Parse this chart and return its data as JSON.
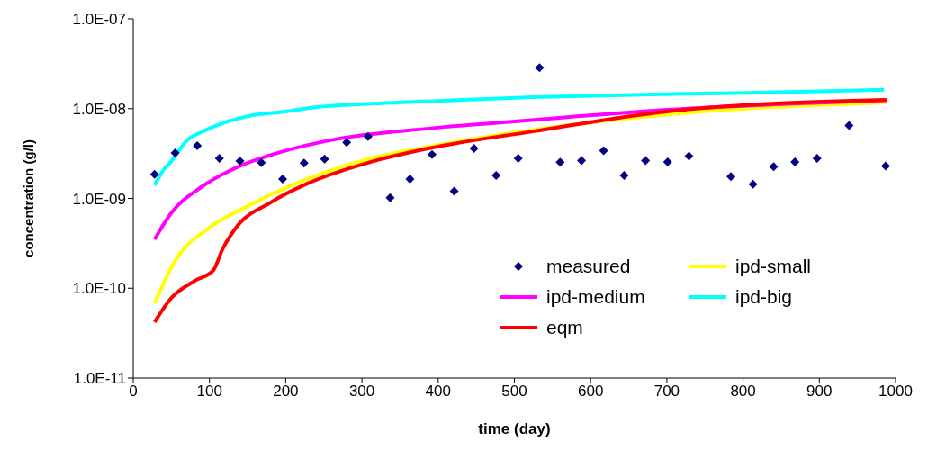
{
  "chart_data": {
    "type": "line",
    "xlabel": "time (day)",
    "ylabel": "concentration (g/l)",
    "log": "y",
    "grid": false,
    "legend": "bottom right",
    "line_style": "solid",
    "xlim": [
      0,
      1000
    ],
    "xticks": [
      0,
      100,
      200,
      300,
      400,
      500,
      600,
      700,
      800,
      900,
      1000
    ],
    "ylim": [
      1e-11,
      1e-07
    ],
    "yticks": [
      {
        "value": 1e-11,
        "label": "1.0E-11"
      },
      {
        "value": 1e-10,
        "label": "1.0E-10"
      },
      {
        "value": 1e-09,
        "label": "1.0E-09"
      },
      {
        "value": 1e-08,
        "label": "1.0E-08"
      },
      {
        "value": 1e-07,
        "label": "1.0E-07"
      }
    ],
    "series": [
      {
        "name": "measured",
        "type": "scatter",
        "marker": "diamond",
        "color": "#000080",
        "x": [
          28,
          55,
          84,
          113,
          140,
          168,
          196,
          224,
          251,
          280,
          308,
          337,
          363,
          392,
          421,
          447,
          476,
          505,
          533,
          560,
          588,
          617,
          644,
          672,
          701,
          729,
          784,
          813,
          840,
          868,
          897,
          939,
          987
        ],
        "values": [
          1.85e-09,
          3.2e-09,
          3.85e-09,
          2.8e-09,
          2.6e-09,
          2.5e-09,
          1.64e-09,
          2.47e-09,
          2.74e-09,
          4.2e-09,
          4.9e-09,
          1.02e-09,
          1.64e-09,
          3.08e-09,
          1.2e-09,
          3.6e-09,
          1.8e-09,
          2.8e-09,
          2.86e-08,
          2.53e-09,
          2.64e-09,
          3.4e-09,
          1.8e-09,
          2.64e-09,
          2.55e-09,
          2.96e-09,
          1.75e-09,
          1.44e-09,
          2.25e-09,
          2.55e-09,
          2.8e-09,
          6.5e-09,
          2.3e-09
        ]
      },
      {
        "name": "ipd-small",
        "type": "line",
        "color": "#ffff00",
        "x": [
          28,
          54,
          101,
          149,
          208,
          308,
          387,
          526,
          700,
          988
        ],
        "values": [
          6.8e-11,
          1.96e-10,
          4.8e-10,
          8.1e-10,
          1.4e-09,
          2.74e-09,
          3.75e-09,
          5.8e-09,
          8.6e-09,
          1.17e-08
        ]
      },
      {
        "name": "ipd-medium",
        "type": "line",
        "color": "#ff00ff",
        "x": [
          28,
          50,
          90,
          133,
          189,
          268,
          387,
          526,
          700,
          988
        ],
        "values": [
          3.5e-10,
          6.9e-10,
          1.35e-09,
          2.16e-09,
          3.2e-09,
          4.6e-09,
          6e-09,
          7.5e-09,
          9.7e-09,
          1.24e-08
        ]
      },
      {
        "name": "ipd-big",
        "type": "line",
        "color": "#00ffff",
        "x": [
          28,
          40,
          50,
          70,
          92,
          120,
          149,
          200,
          241,
          300,
          400,
          525,
          700,
          850,
          985
        ],
        "values": [
          1.4e-09,
          2.1e-09,
          2.6e-09,
          4.4e-09,
          5.6e-09,
          7e-09,
          8.2e-09,
          9.3e-09,
          1.04e-08,
          1.12e-08,
          1.22e-08,
          1.34e-08,
          1.45e-08,
          1.52e-08,
          1.62e-08
        ]
      },
      {
        "name": "eqm",
        "type": "line",
        "color": "#ff0000",
        "x": [
          28,
          50,
          80,
          105,
          117,
          133,
          181,
          228,
          308,
          387,
          526,
          700,
          988
        ],
        "values": [
          4.2e-11,
          7.8e-11,
          1.2e-10,
          1.58e-10,
          2.7e-10,
          4.5e-10,
          9.1e-10,
          1.46e-09,
          2.5e-09,
          3.6e-09,
          5.6e-09,
          9.3e-09,
          1.25e-08
        ]
      }
    ]
  }
}
